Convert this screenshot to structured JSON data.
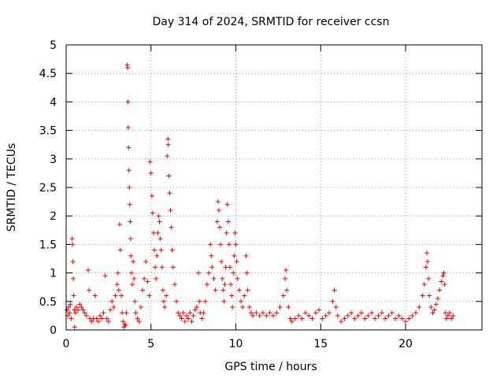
{
  "chart_data": {
    "type": "scatter",
    "title": "Day 314 of 2024, SRMTID for receiver ccsn",
    "xlabel": "GPS time / hours",
    "ylabel": "SRMTID / TECUs",
    "xlim": [
      0,
      24.5
    ],
    "ylim": [
      0,
      5
    ],
    "xticks": [
      0,
      5,
      10,
      15,
      20
    ],
    "xtick_labels": [
      "0",
      "5",
      "10",
      "15",
      "20"
    ],
    "yticks": [
      0,
      0.5,
      1,
      1.5,
      2,
      2.5,
      3,
      3.5,
      4,
      4.5,
      5
    ],
    "ytick_labels": [
      "0",
      "0.5",
      "1",
      "1.5",
      "2",
      "2.5",
      "3",
      "3.5",
      "4",
      "4.5",
      "5"
    ],
    "grid": true,
    "marker": "+",
    "color": "#ff0000",
    "series": [
      {
        "name": "SRMTID",
        "points": [
          [
            0.05,
            0.35
          ],
          [
            0.1,
            0.25
          ],
          [
            0.15,
            0.4
          ],
          [
            0.2,
            0.3
          ],
          [
            0.25,
            0.45
          ],
          [
            0.3,
            0.2
          ],
          [
            0.35,
            1.6
          ],
          [
            0.38,
            1.5
          ],
          [
            0.4,
            1.2
          ],
          [
            0.42,
            0.9
          ],
          [
            0.45,
            0.6
          ],
          [
            0.48,
            0.35
          ],
          [
            0.5,
            0.05
          ],
          [
            0.55,
            0.3
          ],
          [
            0.6,
            0.4
          ],
          [
            0.7,
            0.35
          ],
          [
            0.8,
            0.45
          ],
          [
            0.9,
            0.4
          ],
          [
            1.0,
            0.35
          ],
          [
            1.1,
            0.3
          ],
          [
            1.2,
            0.25
          ],
          [
            1.3,
            1.05
          ],
          [
            1.35,
            0.7
          ],
          [
            1.4,
            0.2
          ],
          [
            1.5,
            0.15
          ],
          [
            1.6,
            0.2
          ],
          [
            1.7,
            0.6
          ],
          [
            1.8,
            0.2
          ],
          [
            1.9,
            0.15
          ],
          [
            2.0,
            0.25
          ],
          [
            2.1,
            0.2
          ],
          [
            2.2,
            0.3
          ],
          [
            2.3,
            0.95
          ],
          [
            2.4,
            0.2
          ],
          [
            2.5,
            0.15
          ],
          [
            2.6,
            0.35
          ],
          [
            2.7,
            0.5
          ],
          [
            2.8,
            0.4
          ],
          [
            2.9,
            0.6
          ],
          [
            3.0,
            0.8
          ],
          [
            3.05,
            1.0
          ],
          [
            3.1,
            0.7
          ],
          [
            3.15,
            1.85
          ],
          [
            3.2,
            1.4
          ],
          [
            3.25,
            0.6
          ],
          [
            3.3,
            0.3
          ],
          [
            3.35,
            0.15
          ],
          [
            3.4,
            0.05
          ],
          [
            3.45,
            0.1
          ],
          [
            3.5,
            0.08
          ],
          [
            3.55,
            0.3
          ],
          [
            3.6,
            4.65
          ],
          [
            3.62,
            4.6
          ],
          [
            3.64,
            4.0
          ],
          [
            3.66,
            3.55
          ],
          [
            3.68,
            3.2
          ],
          [
            3.7,
            2.8
          ],
          [
            3.72,
            2.5
          ],
          [
            3.75,
            2.2
          ],
          [
            3.78,
            1.9
          ],
          [
            3.8,
            1.6
          ],
          [
            3.82,
            1.3
          ],
          [
            3.85,
            1.0
          ],
          [
            3.9,
            0.8
          ],
          [
            3.95,
            1.2
          ],
          [
            4.0,
            0.9
          ],
          [
            4.05,
            0.5
          ],
          [
            4.1,
            0.3
          ],
          [
            4.2,
            0.2
          ],
          [
            4.3,
            0.15
          ],
          [
            4.4,
            0.4
          ],
          [
            4.5,
            0.7
          ],
          [
            4.6,
            0.9
          ],
          [
            4.7,
            1.2
          ],
          [
            4.8,
            0.85
          ],
          [
            4.9,
            0.6
          ],
          [
            4.95,
            2.95
          ],
          [
            5.0,
            2.75
          ],
          [
            5.05,
            2.35
          ],
          [
            5.1,
            2.05
          ],
          [
            5.15,
            1.7
          ],
          [
            5.2,
            1.4
          ],
          [
            5.25,
            1.1
          ],
          [
            5.3,
            0.9
          ],
          [
            5.35,
            1.3
          ],
          [
            5.4,
            1.7
          ],
          [
            5.45,
            2.0
          ],
          [
            5.5,
            1.9
          ],
          [
            5.55,
            1.6
          ],
          [
            5.6,
            1.4
          ],
          [
            5.65,
            1.1
          ],
          [
            5.7,
            0.7
          ],
          [
            5.75,
            0.5
          ],
          [
            5.8,
            0.4
          ],
          [
            5.9,
            0.6
          ],
          [
            5.95,
            3.05
          ],
          [
            6.0,
            3.35
          ],
          [
            6.02,
            3.25
          ],
          [
            6.05,
            2.7
          ],
          [
            6.1,
            2.4
          ],
          [
            6.15,
            2.1
          ],
          [
            6.2,
            1.8
          ],
          [
            6.25,
            1.4
          ],
          [
            6.3,
            1.1
          ],
          [
            6.4,
            0.8
          ],
          [
            6.5,
            0.5
          ],
          [
            6.6,
            0.3
          ],
          [
            6.7,
            0.25
          ],
          [
            6.8,
            0.2
          ],
          [
            6.9,
            0.3
          ],
          [
            7.0,
            0.15
          ],
          [
            7.1,
            0.25
          ],
          [
            7.2,
            0.2
          ],
          [
            7.3,
            0.3
          ],
          [
            7.4,
            0.15
          ],
          [
            7.5,
            0.25
          ],
          [
            7.6,
            0.35
          ],
          [
            7.7,
            0.4
          ],
          [
            7.8,
            1.0
          ],
          [
            7.85,
            0.5
          ],
          [
            7.9,
            0.3
          ],
          [
            8.0,
            0.2
          ],
          [
            8.1,
            0.3
          ],
          [
            8.2,
            0.5
          ],
          [
            8.3,
            0.8
          ],
          [
            8.4,
            1.0
          ],
          [
            8.5,
            1.5
          ],
          [
            8.55,
            1.3
          ],
          [
            8.6,
            1.1
          ],
          [
            8.7,
            0.9
          ],
          [
            8.8,
            0.7
          ],
          [
            8.9,
            1.9
          ],
          [
            8.95,
            2.25
          ],
          [
            9.0,
            2.1
          ],
          [
            9.05,
            1.8
          ],
          [
            9.1,
            1.5
          ],
          [
            9.15,
            1.2
          ],
          [
            9.2,
            0.9
          ],
          [
            9.25,
            0.7
          ],
          [
            9.3,
            0.5
          ],
          [
            9.35,
            0.8
          ],
          [
            9.4,
            1.1
          ],
          [
            9.45,
            1.7
          ],
          [
            9.5,
            2.2
          ],
          [
            9.55,
            1.9
          ],
          [
            9.6,
            1.5
          ],
          [
            9.65,
            1.1
          ],
          [
            9.7,
            0.8
          ],
          [
            9.75,
            0.6
          ],
          [
            9.8,
            0.4
          ],
          [
            9.85,
            1.0
          ],
          [
            9.9,
            1.3
          ],
          [
            9.95,
            1.7
          ],
          [
            10.0,
            1.5
          ],
          [
            10.05,
            1.2
          ],
          [
            10.1,
            0.9
          ],
          [
            10.2,
            0.7
          ],
          [
            10.3,
            0.5
          ],
          [
            10.4,
            0.4
          ],
          [
            10.5,
            0.6
          ],
          [
            10.6,
            1.3
          ],
          [
            10.65,
            1.0
          ],
          [
            10.7,
            0.7
          ],
          [
            10.8,
            0.4
          ],
          [
            10.9,
            0.3
          ],
          [
            11.0,
            0.25
          ],
          [
            11.2,
            0.3
          ],
          [
            11.4,
            0.25
          ],
          [
            11.6,
            0.3
          ],
          [
            11.8,
            0.25
          ],
          [
            12.0,
            0.3
          ],
          [
            12.2,
            0.25
          ],
          [
            12.4,
            0.3
          ],
          [
            12.6,
            0.4
          ],
          [
            12.8,
            0.6
          ],
          [
            12.9,
            0.9
          ],
          [
            12.95,
            1.05
          ],
          [
            13.0,
            0.7
          ],
          [
            13.1,
            0.4
          ],
          [
            13.2,
            0.2
          ],
          [
            13.3,
            0.15
          ],
          [
            13.5,
            0.2
          ],
          [
            13.7,
            0.25
          ],
          [
            13.9,
            0.2
          ],
          [
            14.1,
            0.3
          ],
          [
            14.3,
            0.25
          ],
          [
            14.5,
            0.2
          ],
          [
            14.7,
            0.3
          ],
          [
            14.9,
            0.35
          ],
          [
            15.1,
            0.2
          ],
          [
            15.3,
            0.25
          ],
          [
            15.5,
            0.3
          ],
          [
            15.7,
            0.5
          ],
          [
            15.8,
            0.7
          ],
          [
            15.9,
            0.4
          ],
          [
            16.0,
            0.25
          ],
          [
            16.2,
            0.15
          ],
          [
            16.4,
            0.2
          ],
          [
            16.6,
            0.25
          ],
          [
            16.8,
            0.3
          ],
          [
            17.0,
            0.2
          ],
          [
            17.2,
            0.25
          ],
          [
            17.4,
            0.3
          ],
          [
            17.6,
            0.2
          ],
          [
            17.8,
            0.25
          ],
          [
            18.0,
            0.3
          ],
          [
            18.2,
            0.2
          ],
          [
            18.4,
            0.25
          ],
          [
            18.6,
            0.3
          ],
          [
            18.8,
            0.2
          ],
          [
            19.0,
            0.25
          ],
          [
            19.2,
            0.3
          ],
          [
            19.4,
            0.2
          ],
          [
            19.6,
            0.25
          ],
          [
            19.8,
            0.2
          ],
          [
            20.0,
            0.15
          ],
          [
            20.2,
            0.2
          ],
          [
            20.4,
            0.25
          ],
          [
            20.6,
            0.3
          ],
          [
            20.8,
            0.4
          ],
          [
            21.0,
            0.6
          ],
          [
            21.1,
            0.8
          ],
          [
            21.2,
            1.1
          ],
          [
            21.25,
            1.35
          ],
          [
            21.3,
            1.2
          ],
          [
            21.35,
            0.9
          ],
          [
            21.4,
            0.6
          ],
          [
            21.5,
            0.4
          ],
          [
            21.6,
            0.3
          ],
          [
            21.7,
            0.35
          ],
          [
            21.8,
            0.45
          ],
          [
            21.9,
            0.55
          ],
          [
            22.0,
            0.7
          ],
          [
            22.1,
            0.85
          ],
          [
            22.2,
            0.95
          ],
          [
            22.25,
            1.0
          ],
          [
            22.3,
            0.8
          ],
          [
            22.35,
            0.3
          ],
          [
            22.4,
            0.2
          ],
          [
            22.5,
            0.25
          ],
          [
            22.6,
            0.3
          ],
          [
            22.7,
            0.2
          ],
          [
            22.8,
            0.25
          ]
        ]
      }
    ]
  }
}
